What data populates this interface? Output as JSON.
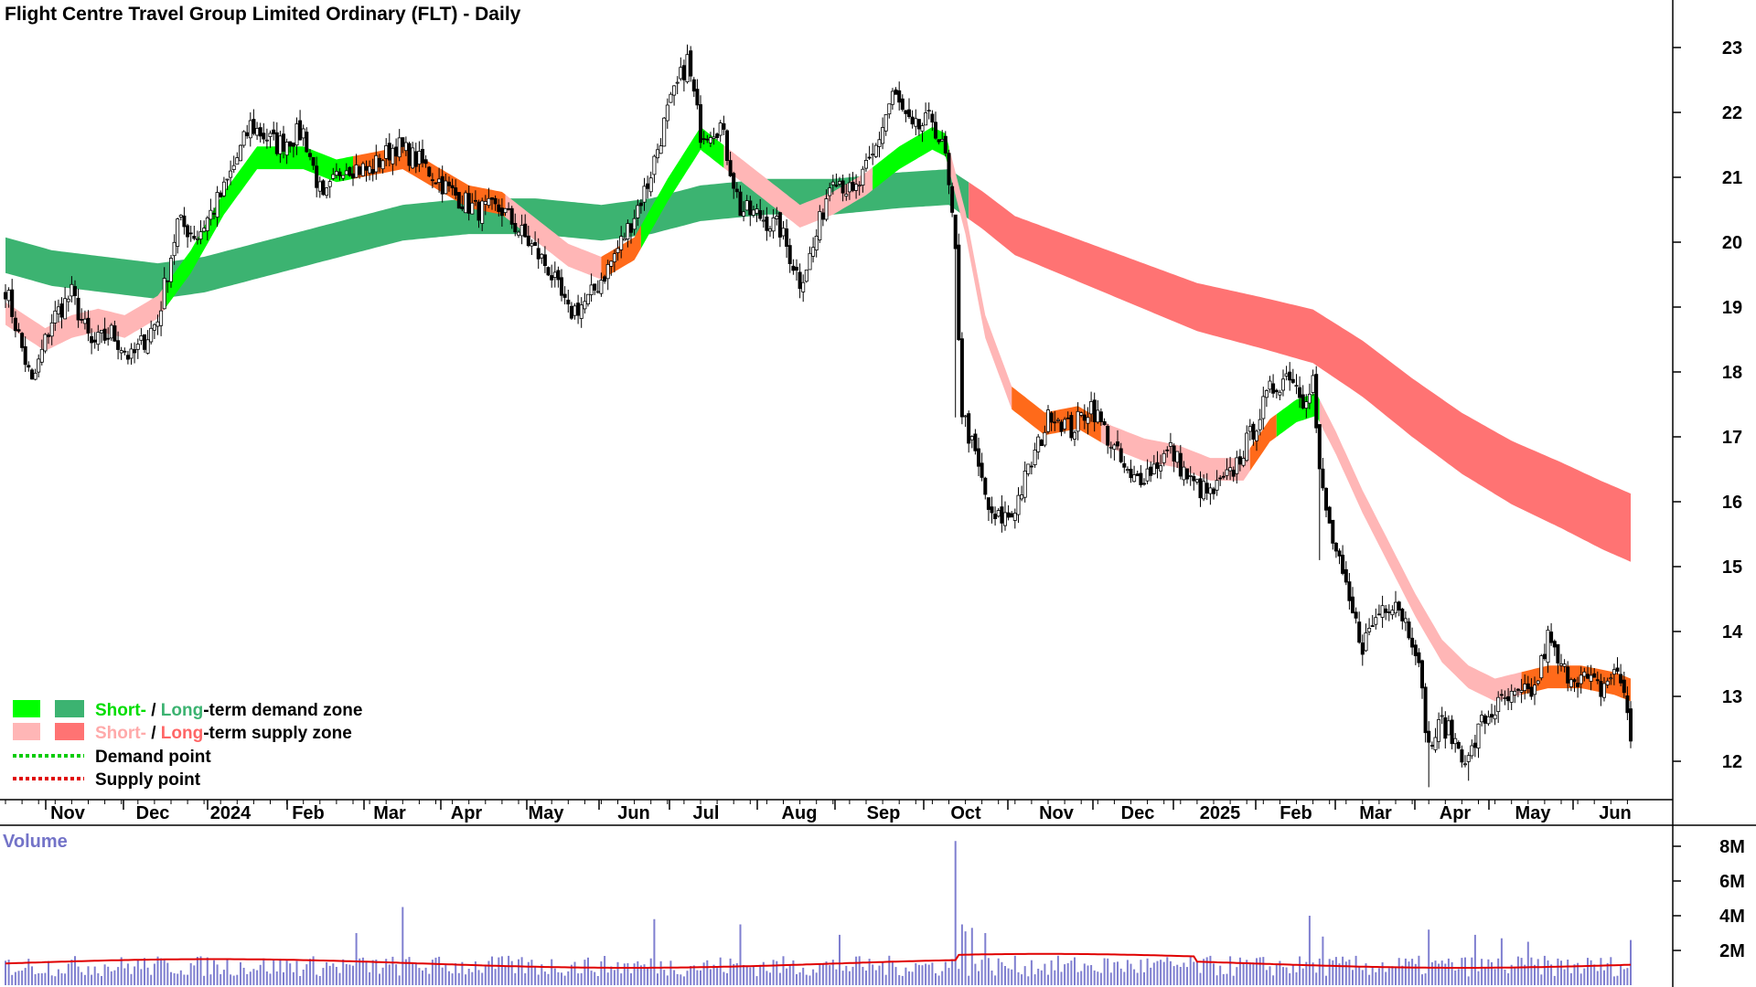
{
  "chart_data": {
    "type": "candlestick",
    "title": "Flight Centre Travel Group Limited Ordinary (FLT) - Daily",
    "colors": {
      "short_demand": "#00ff00",
      "long_demand": "#3cb371",
      "short_supply": "#ffb6b6",
      "long_supply": "#ff7373",
      "neutral_band": "#ff6a1a",
      "volume_bar": "#7f7fd0",
      "volume_average": "#e00000",
      "demand_point": "#00cc00",
      "supply_point": "#e00000"
    },
    "y_axis": {
      "ticks": [
        "23",
        "22",
        "21",
        "20",
        "19",
        "18",
        "17",
        "16",
        "15",
        "14",
        "13",
        "12"
      ],
      "range": [
        11.4,
        23.6
      ]
    },
    "x_axis": {
      "labels": [
        "Nov",
        "Dec",
        "2024",
        "Feb",
        "Mar",
        "Apr",
        "May",
        "Jun",
        "Jul",
        "Aug",
        "Sep",
        "Oct",
        "Nov",
        "Dec",
        "2025",
        "Feb",
        "Mar",
        "Apr",
        "May",
        "Jun"
      ]
    },
    "legend": {
      "placement": "bottom-left",
      "demand_zone": {
        "short": "Short-",
        "sep": " / ",
        "long": "Long",
        "suffix": "-term demand zone"
      },
      "supply_zone": {
        "short": "Short-",
        "sep": " / ",
        "long": "Long",
        "suffix": "-term supply zone"
      },
      "demand_point": "Demand point",
      "supply_point": "Supply point"
    },
    "price_anchors": [
      [
        0,
        19.3
      ],
      [
        8,
        17.8
      ],
      [
        14,
        18.8
      ],
      [
        20,
        19.2
      ],
      [
        26,
        18.4
      ],
      [
        32,
        18.6
      ],
      [
        38,
        18.2
      ],
      [
        46,
        18.8
      ],
      [
        52,
        20.3
      ],
      [
        58,
        20.1
      ],
      [
        66,
        20.8
      ],
      [
        74,
        21.8
      ],
      [
        82,
        21.5
      ],
      [
        90,
        21.7
      ],
      [
        96,
        20.6
      ],
      [
        102,
        21.2
      ],
      [
        110,
        21.1
      ],
      [
        118,
        21.5
      ],
      [
        126,
        21.2
      ],
      [
        134,
        20.8
      ],
      [
        142,
        20.5
      ],
      [
        150,
        20.5
      ],
      [
        158,
        20.0
      ],
      [
        164,
        19.6
      ],
      [
        170,
        18.9
      ],
      [
        176,
        19.1
      ],
      [
        182,
        19.6
      ],
      [
        188,
        20.2
      ],
      [
        194,
        20.9
      ],
      [
        200,
        22.0
      ],
      [
        206,
        22.8
      ],
      [
        210,
        21.7
      ],
      [
        216,
        21.8
      ],
      [
        222,
        20.5
      ],
      [
        228,
        20.4
      ],
      [
        234,
        20.2
      ],
      [
        240,
        19.4
      ],
      [
        244,
        19.9
      ],
      [
        250,
        21.1
      ],
      [
        256,
        20.7
      ],
      [
        262,
        21.3
      ],
      [
        268,
        22.3
      ],
      [
        274,
        21.7
      ],
      [
        280,
        21.9
      ],
      [
        284,
        21.3
      ],
      [
        287,
        19.8
      ],
      [
        289,
        17.4
      ],
      [
        294,
        16.5
      ],
      [
        298,
        15.7
      ],
      [
        304,
        15.8
      ],
      [
        310,
        16.6
      ],
      [
        316,
        17.4
      ],
      [
        322,
        17.1
      ],
      [
        328,
        17.5
      ],
      [
        334,
        16.9
      ],
      [
        340,
        16.3
      ],
      [
        346,
        16.5
      ],
      [
        352,
        16.8
      ],
      [
        358,
        16.3
      ],
      [
        364,
        16.1
      ],
      [
        370,
        16.4
      ],
      [
        376,
        17.0
      ],
      [
        382,
        17.7
      ],
      [
        388,
        18.0
      ],
      [
        392,
        17.6
      ],
      [
        395,
        17.9
      ],
      [
        397,
        16.4
      ],
      [
        400,
        15.6
      ],
      [
        406,
        14.4
      ],
      [
        410,
        13.8
      ],
      [
        416,
        14.4
      ],
      [
        420,
        14.5
      ],
      [
        426,
        13.8
      ],
      [
        430,
        12.2
      ],
      [
        434,
        12.6
      ],
      [
        438,
        12.3
      ],
      [
        442,
        12.0
      ],
      [
        446,
        12.6
      ],
      [
        452,
        12.9
      ],
      [
        458,
        13.0
      ],
      [
        462,
        13.1
      ],
      [
        466,
        13.9
      ],
      [
        470,
        13.4
      ],
      [
        476,
        13.3
      ],
      [
        482,
        13.1
      ],
      [
        486,
        13.4
      ],
      [
        489,
        13.1
      ],
      [
        491,
        12.4
      ]
    ],
    "zones": {
      "short_ema_anchors": [
        [
          0,
          18.9
        ],
        [
          12,
          18.5
        ],
        [
          20,
          18.7
        ],
        [
          28,
          18.8
        ],
        [
          36,
          18.7
        ],
        [
          46,
          19.0
        ],
        [
          56,
          19.7
        ],
        [
          66,
          20.6
        ],
        [
          76,
          21.3
        ],
        [
          90,
          21.3
        ],
        [
          100,
          21.1
        ],
        [
          110,
          21.2
        ],
        [
          120,
          21.3
        ],
        [
          130,
          21.0
        ],
        [
          140,
          20.7
        ],
        [
          150,
          20.6
        ],
        [
          160,
          20.2
        ],
        [
          170,
          19.8
        ],
        [
          180,
          19.6
        ],
        [
          190,
          19.9
        ],
        [
          200,
          20.8
        ],
        [
          210,
          21.6
        ],
        [
          220,
          21.2
        ],
        [
          230,
          20.8
        ],
        [
          240,
          20.4
        ],
        [
          250,
          20.6
        ],
        [
          260,
          20.9
        ],
        [
          270,
          21.3
        ],
        [
          280,
          21.6
        ],
        [
          284,
          21.5
        ],
        [
          290,
          20.3
        ],
        [
          296,
          18.7
        ],
        [
          304,
          17.6
        ],
        [
          314,
          17.2
        ],
        [
          324,
          17.3
        ],
        [
          334,
          17.0
        ],
        [
          344,
          16.8
        ],
        [
          354,
          16.7
        ],
        [
          364,
          16.5
        ],
        [
          374,
          16.5
        ],
        [
          382,
          17.1
        ],
        [
          390,
          17.4
        ],
        [
          396,
          17.5
        ],
        [
          402,
          16.9
        ],
        [
          410,
          16.0
        ],
        [
          418,
          15.2
        ],
        [
          426,
          14.4
        ],
        [
          434,
          13.7
        ],
        [
          442,
          13.3
        ],
        [
          450,
          13.1
        ],
        [
          458,
          13.2
        ],
        [
          466,
          13.3
        ],
        [
          476,
          13.3
        ],
        [
          486,
          13.2
        ],
        [
          491,
          13.1
        ]
      ],
      "short_width": 0.35,
      "long_ema_anchors": [
        [
          0,
          19.8
        ],
        [
          14,
          19.6
        ],
        [
          30,
          19.5
        ],
        [
          46,
          19.4
        ],
        [
          60,
          19.5
        ],
        [
          75,
          19.7
        ],
        [
          90,
          19.9
        ],
        [
          105,
          20.1
        ],
        [
          120,
          20.3
        ],
        [
          140,
          20.4
        ],
        [
          160,
          20.4
        ],
        [
          180,
          20.3
        ],
        [
          195,
          20.4
        ],
        [
          210,
          20.6
        ],
        [
          230,
          20.7
        ],
        [
          250,
          20.7
        ],
        [
          270,
          20.8
        ],
        [
          285,
          20.85
        ],
        [
          295,
          20.5
        ],
        [
          305,
          20.1
        ],
        [
          320,
          19.8
        ],
        [
          340,
          19.4
        ],
        [
          360,
          19.0
        ],
        [
          380,
          18.75
        ],
        [
          395,
          18.55
        ],
        [
          410,
          18.05
        ],
        [
          425,
          17.45
        ],
        [
          440,
          16.9
        ],
        [
          455,
          16.45
        ],
        [
          470,
          16.1
        ],
        [
          482,
          15.8
        ],
        [
          491,
          15.6
        ]
      ],
      "long_width": 0.55,
      "long_width_late": 1.05
    },
    "volume": {
      "label": "Volume",
      "ticks": [
        "8M",
        "6M",
        "4M",
        "2M"
      ],
      "range": [
        0,
        9
      ],
      "baseline_avg": 1.25,
      "spikes": [
        [
          106,
          3.0
        ],
        [
          120,
          4.5
        ],
        [
          196,
          3.8
        ],
        [
          222,
          3.5
        ],
        [
          252,
          2.9
        ],
        [
          287,
          8.3
        ],
        [
          289,
          3.5
        ],
        [
          290,
          3.1
        ],
        [
          292,
          3.3
        ],
        [
          296,
          3.0
        ],
        [
          394,
          4.0
        ],
        [
          398,
          2.8
        ],
        [
          430,
          3.2
        ],
        [
          444,
          2.9
        ],
        [
          452,
          2.7
        ],
        [
          460,
          2.5
        ],
        [
          491,
          2.6
        ]
      ]
    }
  }
}
